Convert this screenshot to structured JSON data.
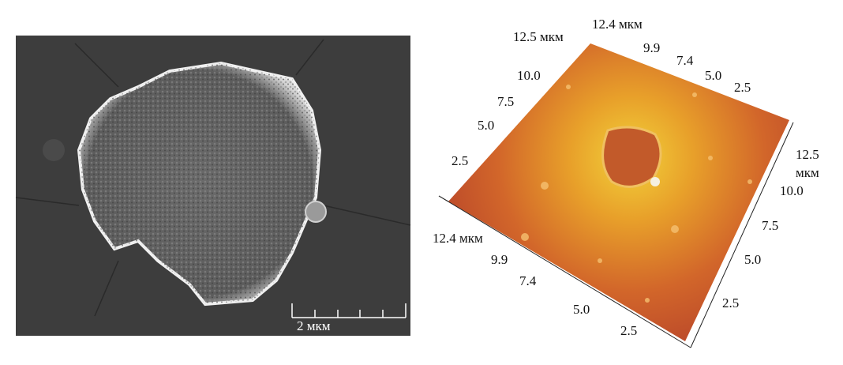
{
  "sem": {
    "scale_bar": "2 мкм"
  },
  "afm": {
    "axis_top_left": [
      "12.5 мкм",
      "10.0",
      "7.5",
      "5.0",
      "2.5"
    ],
    "axis_top_right": [
      "12.4 мкм",
      "9.9",
      "7.4",
      "5.0",
      "2.5"
    ],
    "axis_right": [
      "12.5",
      "мкм",
      "10.0",
      "7.5",
      "5.0",
      "2.5"
    ],
    "axis_bottom_left": [
      "12.4 мкм",
      "9.9",
      "7.4",
      "5.0",
      "2.5"
    ]
  }
}
